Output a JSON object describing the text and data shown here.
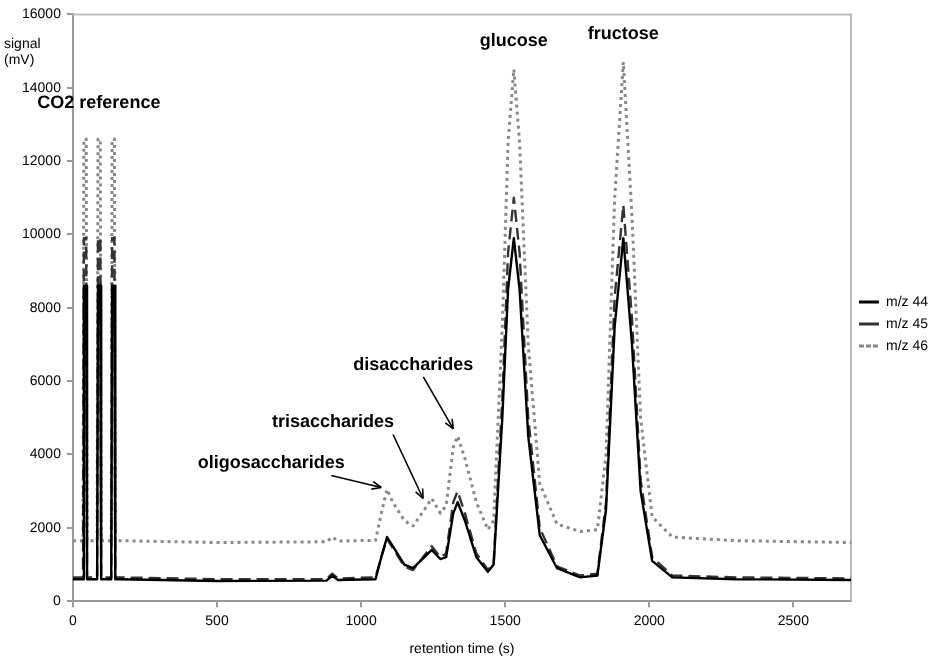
{
  "chart_data": {
    "type": "line",
    "xlabel": "retention time (s)",
    "ylabel": "signal (mV)",
    "xlim": [
      0,
      2700
    ],
    "xticks": [
      0,
      500,
      1000,
      1500,
      2000,
      2500
    ],
    "ylim": [
      0,
      16000
    ],
    "yticks": [
      0,
      2000,
      4000,
      6000,
      8000,
      10000,
      12000,
      14000,
      16000
    ],
    "grid": false,
    "legend": "right",
    "marker": "none",
    "annotations": [
      {
        "text": "CO2 reference",
        "x": 90,
        "y": 12600
      },
      {
        "text": "glucose",
        "x": 1530,
        "y": 14500
      },
      {
        "text": "fructose",
        "x": 1910,
        "y": 14700
      },
      {
        "text": "oligosaccharides",
        "x": 1070,
        "y": 3100
      },
      {
        "text": "trisaccharides",
        "x": 1215,
        "y": 2800
      },
      {
        "text": "disaccharides",
        "x": 1320,
        "y": 4700
      }
    ],
    "series": [
      {
        "name": "m/z 44",
        "color": "#000000",
        "line_style": "solid",
        "x": [
          0,
          35,
          38,
          46,
          49,
          84,
          87,
          95,
          98,
          133,
          136,
          144,
          147,
          160,
          500,
          880,
          900,
          920,
          1050,
          1070,
          1090,
          1110,
          1150,
          1180,
          1220,
          1245,
          1275,
          1295,
          1320,
          1335,
          1360,
          1400,
          1440,
          1460,
          1490,
          1510,
          1530,
          1550,
          1580,
          1620,
          1680,
          1760,
          1820,
          1850,
          1880,
          1910,
          1940,
          1970,
          2010,
          2080,
          2300,
          2700
        ],
        "values": [
          600,
          600,
          8600,
          8600,
          600,
          600,
          8600,
          8600,
          600,
          600,
          8600,
          8600,
          600,
          600,
          550,
          560,
          700,
          580,
          600,
          1200,
          1750,
          1500,
          1000,
          900,
          1200,
          1400,
          1150,
          1200,
          2400,
          2700,
          2200,
          1200,
          800,
          1000,
          5000,
          8500,
          9900,
          8500,
          4500,
          1800,
          900,
          650,
          700,
          2500,
          7500,
          9900,
          7000,
          3000,
          1100,
          650,
          600,
          580
        ]
      },
      {
        "name": "m/z 45",
        "color": "#333333",
        "line_style": "dashed",
        "x": [
          0,
          35,
          38,
          46,
          49,
          84,
          87,
          95,
          98,
          133,
          136,
          144,
          147,
          160,
          500,
          880,
          900,
          920,
          1050,
          1070,
          1090,
          1110,
          1150,
          1180,
          1220,
          1245,
          1275,
          1295,
          1320,
          1335,
          1360,
          1400,
          1440,
          1460,
          1490,
          1510,
          1530,
          1550,
          1580,
          1620,
          1680,
          1760,
          1820,
          1850,
          1880,
          1910,
          1940,
          1970,
          2010,
          2080,
          2300,
          2700
        ],
        "values": [
          650,
          650,
          9900,
          9900,
          650,
          650,
          9900,
          9900,
          650,
          650,
          9900,
          9900,
          650,
          650,
          600,
          600,
          750,
          620,
          650,
          1200,
          1700,
          1450,
          950,
          850,
          1250,
          1500,
          1200,
          1300,
          2700,
          3000,
          2400,
          1300,
          850,
          1050,
          5500,
          9500,
          11000,
          9500,
          5000,
          2000,
          950,
          700,
          750,
          2700,
          8300,
          10800,
          7700,
          3300,
          1200,
          700,
          650,
          620
        ]
      },
      {
        "name": "m/z 46",
        "color": "#888888",
        "line_style": "dotted",
        "x": [
          0,
          35,
          38,
          46,
          49,
          84,
          87,
          95,
          98,
          133,
          136,
          144,
          147,
          160,
          500,
          880,
          900,
          920,
          1050,
          1070,
          1090,
          1110,
          1150,
          1180,
          1220,
          1245,
          1275,
          1295,
          1320,
          1335,
          1360,
          1400,
          1440,
          1460,
          1490,
          1510,
          1530,
          1550,
          1580,
          1620,
          1680,
          1760,
          1820,
          1850,
          1880,
          1910,
          1940,
          1970,
          2010,
          2080,
          2300,
          2700
        ],
        "values": [
          1650,
          1650,
          12600,
          12600,
          1650,
          1650,
          12600,
          12600,
          1650,
          1650,
          12600,
          12600,
          1650,
          1650,
          1600,
          1620,
          1750,
          1640,
          1660,
          2400,
          3050,
          2700,
          2200,
          2050,
          2500,
          2800,
          2400,
          2600,
          4200,
          4500,
          3900,
          2700,
          1950,
          2200,
          7500,
          12500,
          14500,
          12500,
          7000,
          3200,
          2100,
          1900,
          1950,
          4000,
          11000,
          14700,
          10500,
          5000,
          2300,
          1750,
          1650,
          1600
        ]
      }
    ]
  }
}
